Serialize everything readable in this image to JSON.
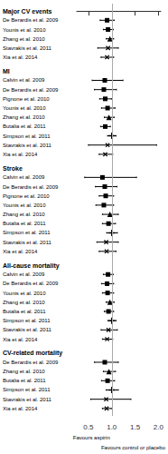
{
  "chart_data": {
    "type": "forest",
    "sections": [
      {
        "title": "Major CV events",
        "entries": [
          {
            "label": "De Berardis et al. 2009",
            "rr": 0.9,
            "lo": 0.75,
            "hi": 1.05,
            "marker": "square"
          },
          {
            "label": "Younis et al. 2010",
            "rr": 0.92,
            "lo": 0.82,
            "hi": 1.03,
            "marker": "square"
          },
          {
            "label": "Zhang et al. 2010",
            "rr": 0.96,
            "lo": 0.88,
            "hi": 1.04,
            "marker": "triangle"
          },
          {
            "label": "Stavrakis et al. 2011",
            "rr": 0.92,
            "lo": 0.7,
            "hi": 1.14,
            "marker": "x"
          },
          {
            "label": "Xia et al. 2014",
            "rr": 0.9,
            "lo": 0.77,
            "hi": 1.04,
            "marker": "x"
          }
        ]
      },
      {
        "title": "MI",
        "entries": [
          {
            "label": "Calvin et al. 2009",
            "rr": 0.85,
            "lo": 0.58,
            "hi": 1.24,
            "marker": "square"
          },
          {
            "label": "De Berardis et al. 2009",
            "rr": 0.83,
            "lo": 0.63,
            "hi": 1.1,
            "marker": "square"
          },
          {
            "label": "Pignone et al. 2010",
            "rr": 0.86,
            "lo": 0.74,
            "hi": 1.0,
            "marker": "square"
          },
          {
            "label": "Younis et al. 2010",
            "rr": 0.91,
            "lo": 0.78,
            "hi": 1.07,
            "marker": "square"
          },
          {
            "label": "Zhang et al. 2010",
            "rr": 0.94,
            "lo": 0.84,
            "hi": 1.05,
            "marker": "triangle"
          },
          {
            "label": "Butalia et al. 2011",
            "rr": 0.86,
            "lo": 0.76,
            "hi": 0.97,
            "marker": "square"
          },
          {
            "label": "Simpson et al. 2011",
            "rr": 1.0,
            "lo": 0.91,
            "hi": 1.09,
            "marker": "plus"
          },
          {
            "label": "Stavrakis et al. 2011",
            "rr": 0.91,
            "lo": 0.5,
            "hi": 1.96,
            "marker": "x"
          },
          {
            "label": "Xia et al. 2014",
            "rr": 0.86,
            "lo": 0.73,
            "hi": 1.02,
            "marker": "x"
          }
        ]
      },
      {
        "title": "Stroke",
        "entries": [
          {
            "label": "Calvin et al. 2009",
            "rr": 0.8,
            "lo": 0.42,
            "hi": 1.53,
            "marker": "square"
          },
          {
            "label": "De Berardis et al. 2009",
            "rr": 0.85,
            "lo": 0.65,
            "hi": 1.11,
            "marker": "square"
          },
          {
            "label": "Pignone et al. 2010",
            "rr": 0.87,
            "lo": 0.73,
            "hi": 1.04,
            "marker": "square"
          },
          {
            "label": "Younis et al. 2010",
            "rr": 0.83,
            "lo": 0.66,
            "hi": 1.04,
            "marker": "square"
          },
          {
            "label": "Zhang et al. 2010",
            "rr": 0.96,
            "lo": 0.8,
            "hi": 1.14,
            "marker": "triangle"
          },
          {
            "label": "Butalia et al. 2011",
            "rr": 0.93,
            "lo": 0.8,
            "hi": 1.08,
            "marker": "square"
          },
          {
            "label": "Simpson et al. 2011",
            "rr": 1.0,
            "lo": 0.89,
            "hi": 1.12,
            "marker": "plus"
          },
          {
            "label": "Stavrakis et al. 2011",
            "rr": 0.88,
            "lo": 0.68,
            "hi": 1.14,
            "marker": "x"
          },
          {
            "label": "Xia et al. 2014",
            "rr": 0.89,
            "lo": 0.73,
            "hi": 1.09,
            "marker": "x"
          }
        ]
      },
      {
        "title": "All-cause mortality",
        "entries": [
          {
            "label": "Calvin et al. 2009",
            "rr": 0.92,
            "lo": 0.82,
            "hi": 1.03,
            "marker": "square"
          },
          {
            "label": "De Berardis et al. 2009",
            "rr": 0.9,
            "lo": 0.78,
            "hi": 1.04,
            "marker": "square"
          },
          {
            "label": "Younis et al. 2010",
            "rr": 0.91,
            "lo": 0.8,
            "hi": 1.04,
            "marker": "square"
          },
          {
            "label": "Zhang et al. 2010",
            "rr": 0.96,
            "lo": 0.88,
            "hi": 1.05,
            "marker": "triangle"
          },
          {
            "label": "Butalia et al. 2011",
            "rr": 0.93,
            "lo": 0.84,
            "hi": 1.04,
            "marker": "square"
          },
          {
            "label": "Simpson et al. 2011",
            "rr": 1.0,
            "lo": 0.92,
            "hi": 1.09,
            "marker": "plus"
          },
          {
            "label": "Stavrakis et al. 2011",
            "rr": 0.93,
            "lo": 0.77,
            "hi": 1.12,
            "marker": "x"
          },
          {
            "label": "Xia et al. 2014",
            "rr": 0.9,
            "lo": 0.8,
            "hi": 1.02,
            "marker": "x"
          }
        ]
      },
      {
        "title": "CV-related mortality",
        "entries": [
          {
            "label": "De Berardis et al. 2009",
            "rr": 0.85,
            "lo": 0.63,
            "hi": 1.14,
            "marker": "square"
          },
          {
            "label": "Zhang et al. 2010",
            "rr": 0.94,
            "lo": 0.82,
            "hi": 1.08,
            "marker": "triangle"
          },
          {
            "label": "Butalia et al. 2011",
            "rr": 0.91,
            "lo": 0.78,
            "hi": 1.06,
            "marker": "square"
          },
          {
            "label": "Simpson et al. 2011",
            "rr": 1.0,
            "lo": 0.88,
            "hi": 1.14,
            "marker": "plus"
          },
          {
            "label": "Stavrakis et al. 2011",
            "rr": 0.88,
            "lo": 0.55,
            "hi": 1.41,
            "marker": "x"
          },
          {
            "label": "Xia et al. 2014",
            "rr": 0.89,
            "lo": 0.8,
            "hi": 0.99,
            "marker": "x"
          }
        ]
      }
    ],
    "xlim": [
      0.25,
      2.05
    ],
    "xticks": [
      0.5,
      {
        "value": 1.0,
        "label": "1.0"
      },
      1.5,
      {
        "value": 2.0,
        "label": "2.0"
      }
    ],
    "reference_line": {
      "x": 1.0,
      "color": "#aaaaaa"
    },
    "annotations": [
      "Favours aspirin",
      "Favours control or placebo"
    ],
    "color": "#000000",
    "grid": false
  }
}
